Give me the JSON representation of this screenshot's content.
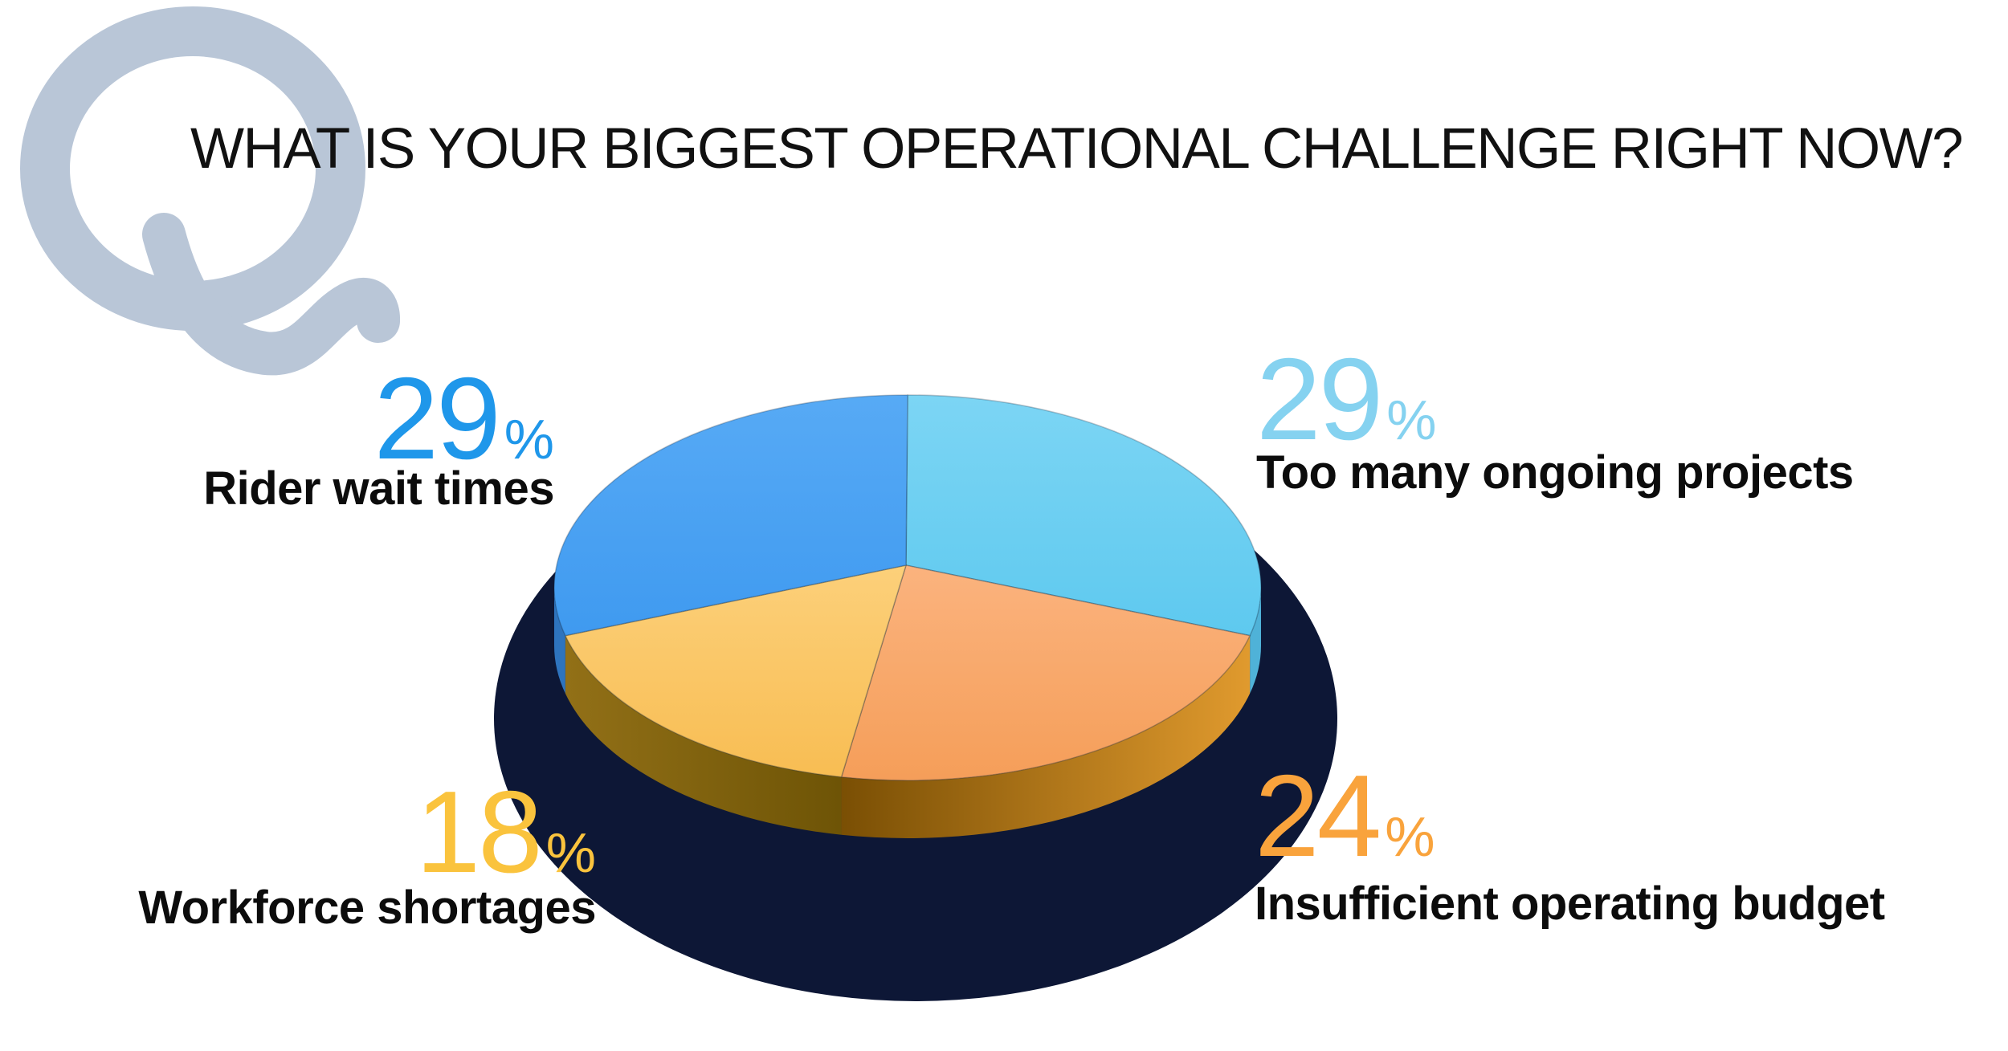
{
  "title": "WHAT IS YOUR BIGGEST OPERATIONAL CHALLENGE RIGHT NOW?",
  "watermark": {
    "letter": "Q",
    "color": "#B9C6D7"
  },
  "styles": {
    "title_color": "#111111",
    "label_text_color": "#0C0C0C",
    "background_color": "#FFFFFF"
  },
  "chart_data": {
    "type": "pie",
    "style": "3d",
    "title": "WHAT IS YOUR BIGGEST OPERATIONAL CHALLENGE RIGHT NOW?",
    "unit": "%",
    "start_angle_deg": 0,
    "direction": "clockwise",
    "legend_position": "callouts-around-pie",
    "background_shadow_color": "#0D1736",
    "slice_outline_color": "rgba(25,45,70,0.28)",
    "slices": [
      {
        "label": "Too many ongoing projects",
        "value": 29,
        "color": "#5EC9EF",
        "color_light": "#7CD5F4",
        "side_from": "#4FB2D8",
        "side_to": "#4FB2D8",
        "label_color": "#85D2F0",
        "callout": "top-right"
      },
      {
        "label": "Insufficient operating budget",
        "value": 24,
        "color": "#F59E59",
        "color_light": "#FBB37E",
        "side_from": "#7A4F04",
        "side_to": "#E09A2E",
        "label_color": "#F9A33C",
        "callout": "bottom-right"
      },
      {
        "label": "Workforce shortages",
        "value": 18,
        "color": "#F8BD53",
        "color_light": "#FCD07A",
        "side_from": "#927017",
        "side_to": "#6E5406",
        "label_color": "#FAC33D",
        "callout": "bottom-left"
      },
      {
        "label": "Rider wait times",
        "value": 29,
        "color": "#3F9AF0",
        "color_light": "#57AAF5",
        "side_from": "#2E74BE",
        "side_to": "#2E74BE",
        "label_color": "#1F97EA",
        "callout": "top-left"
      }
    ]
  }
}
